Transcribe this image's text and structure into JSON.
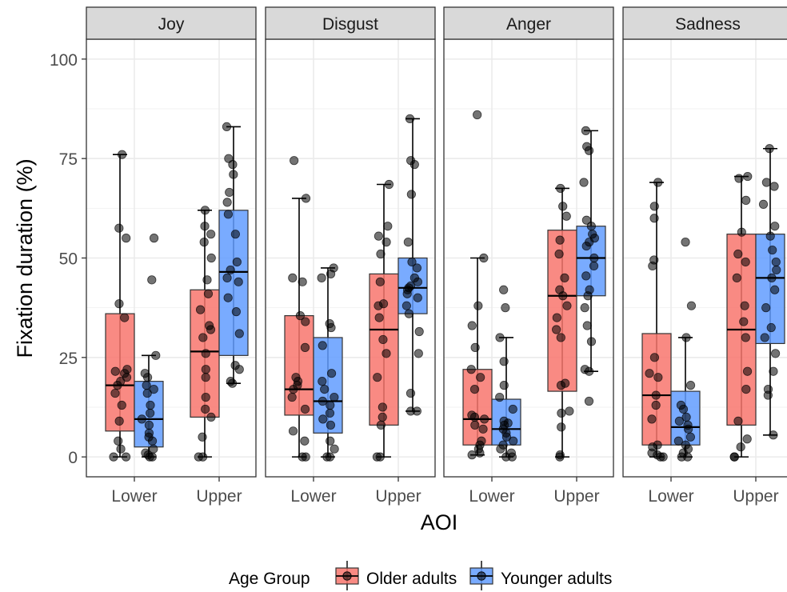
{
  "chart_data": {
    "type": "boxplot",
    "ylabel": "Fixation duration (%)",
    "xlabel": "AOI",
    "ylim": [
      -5,
      105
    ],
    "y_ticks": [
      0,
      25,
      50,
      75,
      100
    ],
    "y_tick_labels": [
      "0",
      "25",
      "50",
      "75",
      "100"
    ],
    "categories": [
      "Lower",
      "Upper"
    ],
    "grid": true,
    "legend": {
      "title": "Age Group",
      "position": "bottom",
      "entries": [
        {
          "label": "Older adults",
          "color": "#f8766d"
        },
        {
          "label": "Younger adults",
          "color": "#619cff"
        }
      ]
    },
    "facets": [
      {
        "name": "Joy",
        "boxes": [
          {
            "category": "Lower",
            "group": "Older adults",
            "min": 0,
            "q1": 6.5,
            "median": 18,
            "q3": 36,
            "max": 76,
            "points": [
              0,
              0,
              2,
              4,
              9,
              13,
              16,
              18,
              19,
              20,
              21,
              21.5,
              22,
              35,
              38.5,
              55,
              57.5,
              76
            ]
          },
          {
            "category": "Lower",
            "group": "Younger adults",
            "min": 0,
            "q1": 2.5,
            "median": 9.5,
            "q3": 19,
            "max": 25.5,
            "points": [
              0,
              0,
              0.5,
              1,
              2,
              4,
              5,
              6,
              8,
              9.5,
              11,
              13,
              16,
              17,
              18,
              20,
              21,
              25.5,
              44.5,
              55
            ]
          },
          {
            "category": "Upper",
            "group": "Older adults",
            "min": 0,
            "q1": 10,
            "median": 26.5,
            "q3": 42,
            "max": 62,
            "points": [
              0,
              0,
              5,
              10,
              12,
              15,
              20,
              22,
              26,
              30,
              32,
              33,
              37,
              41,
              44.5,
              50,
              54,
              56,
              58,
              62
            ]
          },
          {
            "category": "Upper",
            "group": "Younger adults",
            "min": 18.5,
            "q1": 25.5,
            "median": 46.5,
            "q3": 62,
            "max": 83,
            "points": [
              18.5,
              19,
              22,
              23,
              31,
              36.5,
              40,
              44,
              45,
              47,
              49,
              56,
              61,
              64,
              66.5,
              71,
              73.5,
              75,
              83
            ]
          }
        ]
      },
      {
        "name": "Disgust",
        "boxes": [
          {
            "category": "Lower",
            "group": "Older adults",
            "min": 0,
            "q1": 10.5,
            "median": 17,
            "q3": 35.5,
            "max": 65,
            "points": [
              0,
              0,
              4,
              6.5,
              12,
              15,
              17,
              18,
              19,
              20,
              27.5,
              34,
              35.5,
              44,
              45,
              65,
              74.5
            ]
          },
          {
            "category": "Lower",
            "group": "Younger adults",
            "min": 0,
            "q1": 6,
            "median": 14,
            "q3": 30,
            "max": 47.5,
            "points": [
              0,
              0,
              2,
              4,
              8,
              9.5,
              11,
              13,
              14,
              15,
              17,
              19,
              21,
              28,
              32.5,
              33.5,
              45,
              46,
              47.5
            ]
          },
          {
            "category": "Upper",
            "group": "Older adults",
            "min": 0,
            "q1": 8,
            "median": 32,
            "q3": 46,
            "max": 68.5,
            "points": [
              0,
              0,
              8,
              10,
              12.5,
              20,
              26,
              29.5,
              35,
              38,
              38.5,
              44,
              51,
              54,
              55.5,
              58,
              68.5
            ]
          },
          {
            "category": "Upper",
            "group": "Younger adults",
            "min": 11.5,
            "q1": 36,
            "median": 42.5,
            "q3": 50,
            "max": 85,
            "points": [
              11.5,
              11.5,
              16,
              26,
              31.5,
              36,
              38,
              40,
              41,
              42,
              42.5,
              43,
              44,
              45,
              47.5,
              49,
              54,
              66,
              73.5,
              74.5,
              85
            ]
          }
        ]
      },
      {
        "name": "Anger",
        "boxes": [
          {
            "category": "Lower",
            "group": "Older adults",
            "min": 0.5,
            "q1": 3,
            "median": 9.5,
            "q3": 22,
            "max": 50,
            "points": [
              0.5,
              1,
              2,
              3,
              4,
              7,
              8,
              9.5,
              10,
              10.5,
              17,
              20,
              22,
              27.5,
              33,
              38,
              50,
              86
            ]
          },
          {
            "category": "Lower",
            "group": "Younger adults",
            "min": 0,
            "q1": 3,
            "median": 7,
            "q3": 14.5,
            "max": 30,
            "points": [
              0,
              0,
              1,
              2,
              3,
              4,
              5,
              6,
              7,
              8,
              8.5,
              9,
              12,
              15,
              18,
              24,
              30,
              37.5,
              42
            ]
          },
          {
            "category": "Upper",
            "group": "Older adults",
            "min": 0,
            "q1": 16.5,
            "median": 40.5,
            "q3": 57,
            "max": 67.5,
            "points": [
              0,
              0.5,
              7.5,
              11,
              11.5,
              18,
              18.5,
              30,
              32,
              35,
              38,
              40.5,
              42,
              45,
              51,
              54.5,
              60.5,
              63,
              67.5
            ]
          },
          {
            "category": "Upper",
            "group": "Younger adults",
            "min": 21.5,
            "q1": 40.5,
            "median": 50,
            "q3": 58,
            "max": 82,
            "points": [
              14,
              21.5,
              22,
              29,
              33,
              37.5,
              40.5,
              42,
              45.5,
              48,
              50,
              53,
              54,
              55,
              56,
              58,
              59.5,
              69,
              77,
              78,
              82
            ]
          }
        ]
      },
      {
        "name": "Sadness",
        "boxes": [
          {
            "category": "Lower",
            "group": "Older adults",
            "min": 0,
            "q1": 3,
            "median": 15.5,
            "q3": 31,
            "max": 69,
            "points": [
              0,
              0,
              0.5,
              1,
              2.5,
              3,
              9.5,
              13,
              15.5,
              20,
              21,
              25,
              48,
              49.5,
              60,
              63,
              69
            ]
          },
          {
            "category": "Lower",
            "group": "Younger adults",
            "min": 0,
            "q1": 3,
            "median": 7.5,
            "q3": 16.5,
            "max": 30,
            "points": [
              0,
              0,
              1,
              2,
              3,
              4,
              5,
              7,
              8,
              9,
              10,
              12,
              13,
              18,
              30,
              38,
              54
            ]
          },
          {
            "category": "Upper",
            "group": "Older adults",
            "min": 0,
            "q1": 8,
            "median": 32,
            "q3": 56,
            "max": 70.5,
            "points": [
              0,
              0,
              2.5,
              4.5,
              9,
              17,
              21.5,
              30,
              34,
              38,
              45,
              49,
              51,
              56.5,
              64.5,
              70,
              70.5
            ]
          },
          {
            "category": "Upper",
            "group": "Younger adults",
            "min": 5.5,
            "q1": 28.5,
            "median": 45,
            "q3": 56,
            "max": 77.5,
            "points": [
              5.5,
              15.5,
              17,
              21.5,
              26,
              30,
              32.5,
              37.5,
              42,
              45,
              47,
              49,
              52,
              55.5,
              58,
              63.5,
              68,
              69,
              77.5
            ]
          }
        ]
      }
    ]
  }
}
